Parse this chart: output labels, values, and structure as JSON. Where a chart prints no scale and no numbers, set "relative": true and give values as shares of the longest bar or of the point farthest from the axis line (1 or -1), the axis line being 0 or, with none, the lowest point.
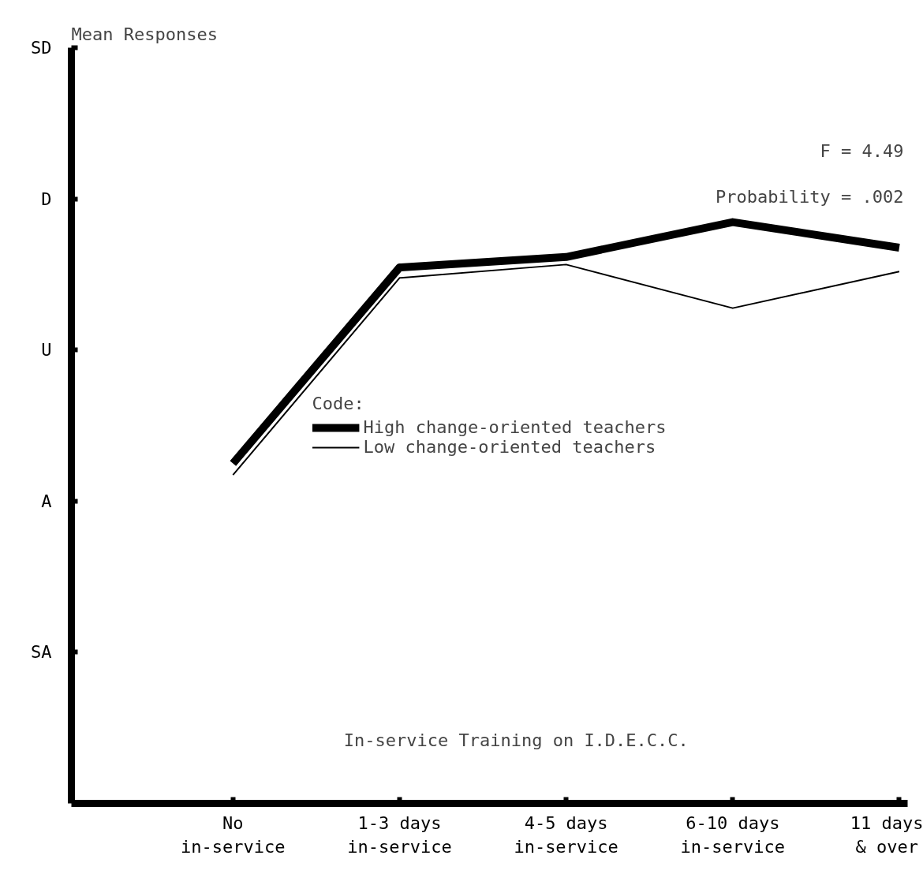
{
  "chart_data": {
    "type": "line",
    "xlabel": "In-service Training on I.D.E.C.C.",
    "categories": [
      "No\nin-service",
      "1-3 days\nin-service",
      "4-5 days\nin-service",
      "6-10 days\nin-service",
      "11 days\n& over"
    ],
    "series": [
      {
        "name": "High change-oriented teachers",
        "color": "#000000",
        "values": [
          0.585,
          0.922,
          0.94,
          1,
          0.956
        ]
      },
      {
        "name": "Low change-oriented teachers",
        "color": "#000000",
        "values": [
          0.565,
          0.904,
          0.927,
          0.852,
          0.915
        ]
      }
    ],
    "relative": true,
    "legend": "center",
    "legend_title": "Code:",
    "grid": false,
    "marker": "none",
    "annotations": [
      "F = 4.49",
      "Probability = .002",
      "Mean Responses",
      "SD",
      "D",
      "U",
      "A",
      "SA"
    ]
  }
}
